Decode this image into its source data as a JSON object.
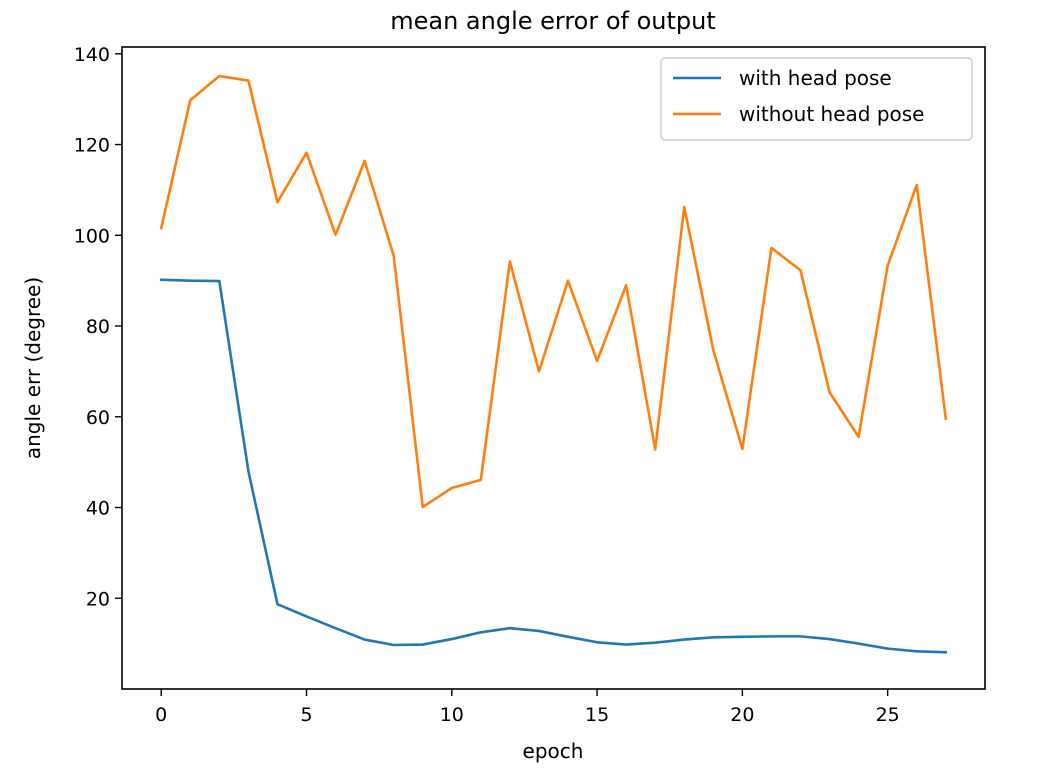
{
  "chart_data": {
    "type": "line",
    "title": "mean angle error of output",
    "xlabel": "epoch",
    "ylabel": "angle err (degree)",
    "xlim": [
      -1.35,
      28.35
    ],
    "ylim": [
      0,
      141.5
    ],
    "xticks": [
      0,
      5,
      10,
      15,
      20,
      25
    ],
    "yticks": [
      20,
      40,
      60,
      80,
      100,
      120,
      140
    ],
    "grid": false,
    "legend_position": "top-right",
    "x": [
      0,
      1,
      2,
      3,
      4,
      5,
      6,
      7,
      8,
      9,
      10,
      11,
      12,
      13,
      14,
      15,
      16,
      17,
      18,
      19,
      20,
      21,
      22,
      23,
      24,
      25,
      26,
      27
    ],
    "series": [
      {
        "name": "with head pose",
        "color": "#1f77b4",
        "values": [
          90.2,
          90.0,
          89.9,
          48.0,
          18.7,
          16.0,
          13.4,
          10.9,
          9.7,
          9.8,
          11.0,
          12.5,
          13.4,
          12.8,
          11.5,
          10.3,
          9.8,
          10.2,
          10.9,
          11.4,
          11.5,
          11.6,
          11.6,
          11.0,
          10.0,
          8.9,
          8.3,
          8.1
        ]
      },
      {
        "name": "without head pose",
        "color": "#ff7f0e",
        "values": [
          101.6,
          129.8,
          135.1,
          134.1,
          107.3,
          118.2,
          100.1,
          116.4,
          95.5,
          40.1,
          44.3,
          46.1,
          94.2,
          70.0,
          90.0,
          72.3,
          89.0,
          52.8,
          106.2,
          74.7,
          52.9,
          97.2,
          92.3,
          65.4,
          55.6,
          93.3,
          111.1,
          59.6
        ]
      }
    ]
  }
}
